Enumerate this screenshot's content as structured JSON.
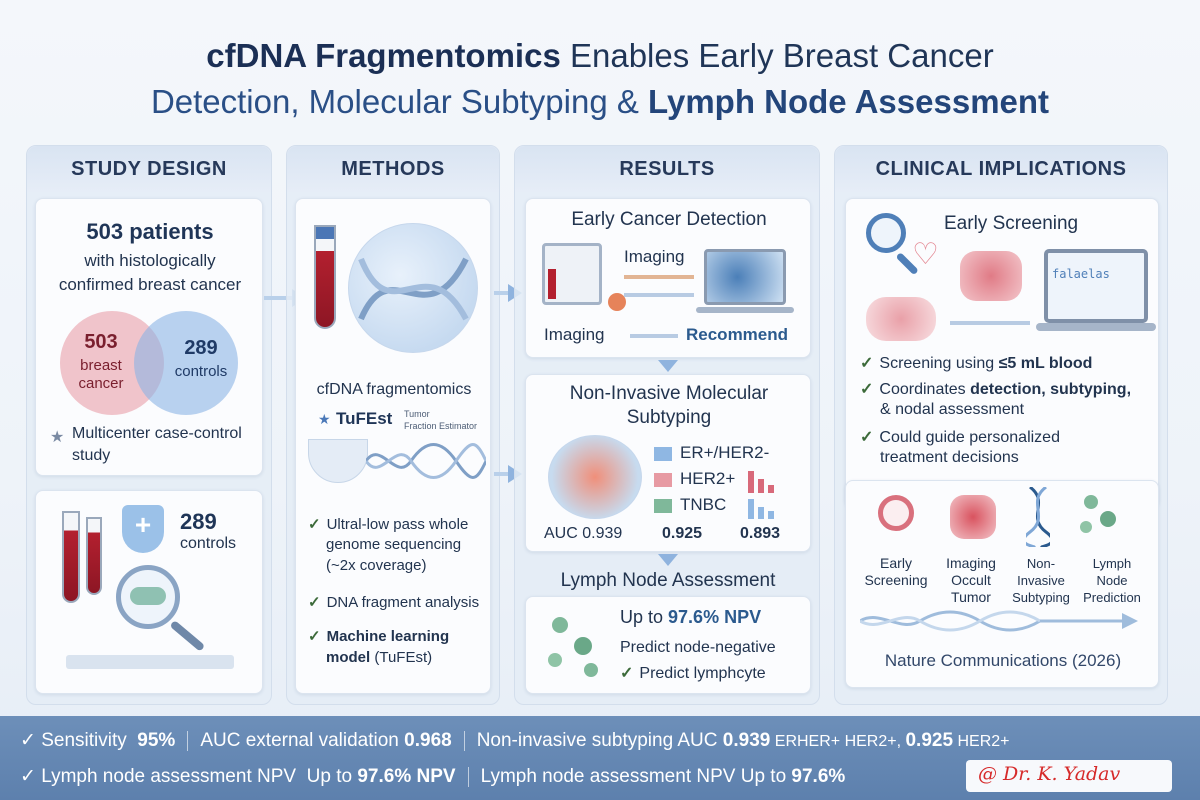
{
  "title": {
    "line1_bold": "cfDNA Fragmentomics",
    "line1_rest": " Enables Early Breast Cancer",
    "line2_a": "Detection, Molecular Subtyping & ",
    "line2_bold": "Lymph Node Assessment"
  },
  "study_design": {
    "header": "STUDY DESIGN",
    "patients": "503 patients",
    "patients_desc1": "with histologically",
    "patients_desc2": "confirmed breast cancer",
    "venn_left_num": "503",
    "venn_left_l1": "breast",
    "venn_left_l2": "cancer",
    "venn_right_num": "289",
    "venn_right_label": "controls",
    "multicenter_l1": "Multicenter case-control",
    "multicenter_l2": "study",
    "controls_num": "289",
    "controls_label": "controls"
  },
  "methods": {
    "header": "METHODS",
    "cfdna_label": "cfDNA fragmentomics",
    "tufest": "TuFEst",
    "tufest_small1": "Tumor",
    "tufest_small2": "Fraction Estimator",
    "item1_l1": "Ultral-low pass whole",
    "item1_l2": "genome sequencing",
    "item1_l3": "(~2x coverage)",
    "item2": "DNA fragment analysis",
    "item3_l1": "Machine learning",
    "item3_l2": "model",
    "item3_l2b": " (TuFEst)"
  },
  "results": {
    "header": "RESULTS",
    "early_title": "Early Cancer Detection",
    "imaging1": "Imaging",
    "imaging2": "Imaging",
    "recommend": "Recommend",
    "subtype_title1": "Non-Invasive Molecular",
    "subtype_title2": "Subtyping",
    "legend": [
      "ER+/HER2-",
      "HER2+",
      "TNBC"
    ],
    "auc1": "AUC 0.939",
    "auc2": "0.925",
    "auc3": "0.893",
    "lymph_title": "Lymph Node Assessment",
    "npv_prefix": "Up to ",
    "npv_bold": "97.6% NPV",
    "predict1": "Predict node-negative",
    "predict2": "Predict lymphcyte"
  },
  "clinical": {
    "header": "CLINICAL IMPLICATIONS",
    "early_screening": "Early Screening",
    "screen_label": "falaelas",
    "bullet1_a": "Screening using ",
    "bullet1_b": "≤5 mL blood",
    "bullet2_a": "Coordinates ",
    "bullet2_b": "detection, subtyping,",
    "bullet2_c": "& nodal assessment",
    "bullet3_l1": "Could guide personalized",
    "bullet3_l2": "treatment decisions",
    "icons": [
      {
        "l1": "Early",
        "l2": "Screening",
        "l3": ""
      },
      {
        "l1": "Imaging",
        "l2": "Occult",
        "l3": "Tumor"
      },
      {
        "l1": "Non-",
        "l2": "Invasive",
        "l3": "Subtyping"
      },
      {
        "l1": "Lymph",
        "l2": "Node",
        "l3": "Prediction"
      }
    ],
    "journal": "Nature Communications (2026)"
  },
  "bottom": {
    "r1_a": "Sensitivity",
    "r1_a_val": "95%",
    "r1_b": "AUC external validation ",
    "r1_b_val": "0.968",
    "r1_c": "Non-invasive subtyping AUC ",
    "r1_c_val": "0.939",
    "r1_c2": " ERHER+ HER2+, ",
    "r1_c3": "0.925",
    "r1_c4": " HER2+",
    "r2_a": "Lymph node assessment NPV",
    "r2_a2": "Up to ",
    "r2_a_val": "97.6% NPV",
    "r2_b": "Lymph node assessment NPV Up to ",
    "r2_b_val": "97.6%",
    "signature": "@ Dr. K. Yadav"
  },
  "colors": {
    "accent": "#2a4f86",
    "pink": "#e79aa3",
    "blue": "#8fb7e3",
    "bar": "#6d8fb9"
  }
}
